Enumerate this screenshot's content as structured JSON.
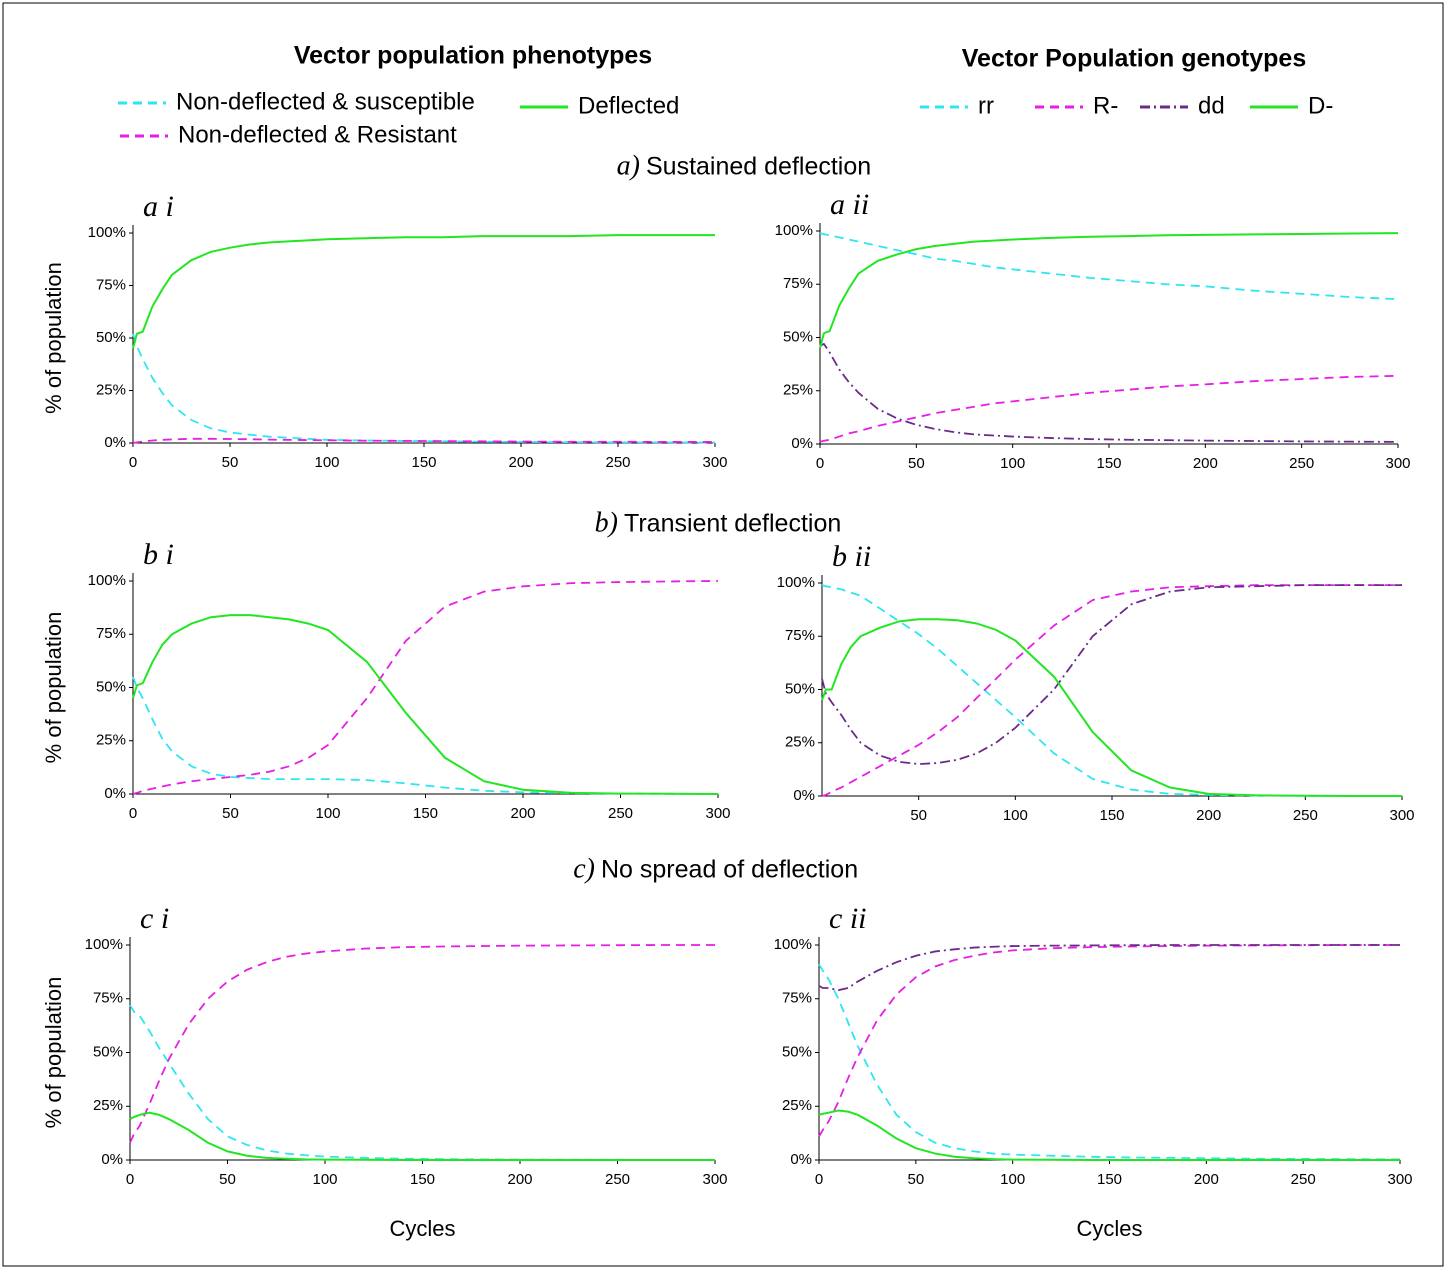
{
  "legends": [
    {
      "title": "Vector population  phenotypes",
      "items": [
        {
          "name": "Non-deflected & susceptible",
          "color": "#2ee6f0",
          "style": "dashed"
        },
        {
          "name": "Deflected",
          "color": "#22e622",
          "style": "solid"
        },
        {
          "name": "Non-deflected & Resistant",
          "color": "#e61ee6",
          "style": "dashed"
        }
      ]
    },
    {
      "title": "Vector Population  genotypes",
      "items": [
        {
          "name": "rr",
          "color": "#2ee6f0",
          "style": "dashed"
        },
        {
          "name": "R-",
          "color": "#e61ee6",
          "style": "dashed"
        },
        {
          "name": "dd",
          "color": "#6a2b8a",
          "style": "dashdot"
        },
        {
          "name": "D-",
          "color": "#22e622",
          "style": "solid"
        }
      ]
    }
  ],
  "sections": [
    {
      "letter": "a)",
      "title": "Sustained deflection"
    },
    {
      "letter": "b)",
      "title": "Transient deflection"
    },
    {
      "letter": "c)",
      "title": "No spread of deflection"
    }
  ],
  "chart_data": [
    {
      "type": "line",
      "title": "a i",
      "ylabel": "% of population",
      "x": [
        0,
        2,
        5,
        10,
        15,
        20,
        30,
        40,
        50,
        60,
        70,
        80,
        90,
        100,
        120,
        140,
        160,
        180,
        200,
        225,
        250,
        275,
        300
      ],
      "series": [
        {
          "color": "#2ee6f0",
          "style": "dashed",
          "values": [
            52,
            46,
            40,
            31,
            24,
            18,
            11,
            7,
            5,
            4,
            3,
            2.5,
            2,
            1.5,
            1.2,
            1,
            0.8,
            0.6,
            0.5,
            0.4,
            0.3,
            0.3,
            0.2
          ]
        },
        {
          "color": "#e61ee6",
          "style": "dashed",
          "values": [
            0,
            0.3,
            0.7,
            1.2,
            1.5,
            1.7,
            2,
            2,
            1.9,
            1.8,
            1.6,
            1.5,
            1.4,
            1.3,
            1.1,
            1,
            0.9,
            0.8,
            0.7,
            0.6,
            0.6,
            0.5,
            0.5
          ]
        },
        {
          "color": "#22e622",
          "style": "solid",
          "values": [
            45,
            52,
            53,
            65,
            73,
            80,
            87,
            91,
            93,
            94.5,
            95.5,
            96,
            96.5,
            97,
            97.5,
            98,
            98,
            98.5,
            98.5,
            98.5,
            99,
            99,
            99
          ]
        }
      ],
      "xlim": [
        0,
        300
      ],
      "ylim": [
        0,
        100
      ],
      "xticks": [
        0,
        50,
        100,
        150,
        200,
        250,
        300
      ],
      "yticks": [
        {
          "value": 0,
          "label": "0%"
        },
        {
          "value": 25,
          "label": "25%"
        },
        {
          "value": 50,
          "label": "50%"
        },
        {
          "value": 75,
          "label": "75%"
        },
        {
          "value": 100,
          "label": "100%"
        }
      ]
    },
    {
      "type": "line",
      "title": "a ii",
      "x": [
        0,
        2,
        5,
        10,
        15,
        20,
        30,
        40,
        50,
        60,
        70,
        80,
        90,
        100,
        120,
        140,
        160,
        180,
        200,
        225,
        250,
        275,
        300
      ],
      "series": [
        {
          "color": "#2ee6f0",
          "style": "dashed",
          "values": [
            99,
            98.5,
            98,
            97,
            96,
            95,
            93,
            91,
            89,
            87,
            86,
            84.5,
            83,
            82,
            80,
            78,
            76.5,
            75,
            74,
            72,
            70.5,
            69,
            68
          ]
        },
        {
          "color": "#e61ee6",
          "style": "dashed",
          "values": [
            1,
            1.5,
            2,
            3.5,
            5,
            6,
            8.5,
            10.5,
            12.5,
            14.5,
            16,
            17.5,
            19,
            20,
            22,
            24,
            25.5,
            27,
            28,
            29.5,
            30.5,
            31.5,
            32
          ]
        },
        {
          "color": "#6a2b8a",
          "style": "dashdot",
          "values": [
            46,
            47,
            43,
            35,
            29,
            24,
            16.5,
            12,
            9,
            7,
            5.5,
            4.5,
            4,
            3.5,
            2.8,
            2.3,
            2,
            1.8,
            1.6,
            1.4,
            1.2,
            1.1,
            1
          ]
        },
        {
          "color": "#22e622",
          "style": "solid",
          "values": [
            45,
            52,
            53,
            65,
            73,
            80,
            86,
            89,
            91.5,
            93,
            94,
            95,
            95.5,
            96,
            96.8,
            97.3,
            97.6,
            98,
            98.2,
            98.4,
            98.6,
            98.8,
            99
          ]
        }
      ],
      "xlim": [
        0,
        300
      ],
      "ylim": [
        0,
        100
      ],
      "xticks": [
        0,
        50,
        100,
        150,
        200,
        250,
        300
      ],
      "yticks": [
        {
          "value": 0,
          "label": "0%"
        },
        {
          "value": 25,
          "label": "25%"
        },
        {
          "value": 50,
          "label": "50%"
        },
        {
          "value": 75,
          "label": "75%"
        },
        {
          "value": 100,
          "label": "100%"
        }
      ]
    },
    {
      "type": "line",
      "title": "b i",
      "ylabel": "% of population",
      "x": [
        0,
        2,
        5,
        10,
        15,
        20,
        30,
        40,
        50,
        60,
        70,
        80,
        90,
        100,
        120,
        140,
        160,
        180,
        200,
        225,
        250,
        275,
        300
      ],
      "series": [
        {
          "color": "#2ee6f0",
          "style": "dashed",
          "values": [
            55,
            50,
            45,
            35,
            26,
            20,
            13,
            9.5,
            8,
            7.5,
            7,
            7,
            7,
            7,
            6.5,
            5,
            3,
            1.5,
            0.8,
            0.4,
            0.2,
            0.1,
            0
          ]
        },
        {
          "color": "#e61ee6",
          "style": "dashed",
          "values": [
            0,
            0.5,
            1.5,
            2.5,
            3.5,
            4.5,
            6,
            7,
            8,
            9,
            10.5,
            13,
            17,
            23,
            45,
            72,
            88,
            95,
            97.5,
            99,
            99.5,
            99.8,
            100
          ]
        },
        {
          "color": "#22e622",
          "style": "solid",
          "values": [
            45,
            51,
            52,
            62,
            70,
            75,
            80,
            83,
            84,
            84,
            83,
            82,
            80,
            77,
            62,
            38,
            17,
            6,
            2,
            0.5,
            0.2,
            0.1,
            0
          ]
        }
      ],
      "xlim": [
        0,
        300
      ],
      "ylim": [
        0,
        100
      ],
      "xticks": [
        0,
        50,
        100,
        150,
        200,
        250,
        300
      ],
      "yticks": [
        {
          "value": 0,
          "label": "0%"
        },
        {
          "value": 25,
          "label": "25%"
        },
        {
          "value": 50,
          "label": "50%"
        },
        {
          "value": 75,
          "label": "75%"
        },
        {
          "value": 100,
          "label": "100%"
        }
      ]
    },
    {
      "type": "line",
      "title": "b ii",
      "x": [
        0,
        2,
        5,
        10,
        15,
        20,
        30,
        40,
        50,
        60,
        70,
        80,
        90,
        100,
        120,
        140,
        160,
        180,
        200,
        225,
        250,
        275,
        300
      ],
      "series": [
        {
          "color": "#2ee6f0",
          "style": "dashed",
          "values": [
            99,
            98.5,
            98,
            97,
            95.5,
            94,
            88,
            82,
            76,
            69,
            61,
            53,
            45,
            37,
            20,
            8,
            3,
            1,
            0.5,
            0.2,
            0.1,
            0,
            0
          ]
        },
        {
          "color": "#e61ee6",
          "style": "dashed",
          "values": [
            0,
            0.5,
            2,
            4,
            6.5,
            9,
            14,
            19,
            24,
            30,
            37,
            46,
            55,
            64,
            80,
            92,
            96,
            98,
            98.5,
            99,
            99,
            99,
            99
          ]
        },
        {
          "color": "#6a2b8a",
          "style": "dashdot",
          "values": [
            55,
            48,
            44,
            38,
            31,
            25,
            19,
            16,
            15,
            15.5,
            17,
            20,
            25,
            32,
            50,
            75,
            90,
            96,
            98,
            98.5,
            99,
            99,
            99
          ]
        },
        {
          "color": "#22e622",
          "style": "solid",
          "values": [
            45,
            50,
            50,
            62,
            70,
            75,
            79,
            82,
            83,
            83,
            82.5,
            81,
            78,
            73,
            56,
            30,
            12,
            4,
            1,
            0.3,
            0.1,
            0,
            0
          ]
        }
      ],
      "xlim": [
        0,
        300
      ],
      "ylim": [
        0,
        100
      ],
      "xticks": [
        50,
        100,
        150,
        200,
        250,
        300
      ],
      "yticks": [
        {
          "value": 0,
          "label": "0%"
        },
        {
          "value": 25,
          "label": "25%"
        },
        {
          "value": 50,
          "label": "50%"
        },
        {
          "value": 75,
          "label": "75%"
        },
        {
          "value": 100,
          "label": "100%"
        }
      ]
    },
    {
      "type": "line",
      "title": "c i",
      "ylabel": "% of population",
      "xlabel": "Cycles",
      "x": [
        0,
        2,
        5,
        10,
        15,
        20,
        30,
        40,
        50,
        60,
        70,
        80,
        90,
        100,
        120,
        140,
        160,
        180,
        200,
        225,
        250,
        275,
        300
      ],
      "series": [
        {
          "color": "#2ee6f0",
          "style": "dashed",
          "values": [
            72,
            69,
            67,
            60,
            52,
            45,
            31,
            19,
            11,
            7,
            4.5,
            3,
            2.2,
            1.6,
            1,
            0.6,
            0.4,
            0.3,
            0.2,
            0.1,
            0.1,
            0,
            0
          ]
        },
        {
          "color": "#e61ee6",
          "style": "dashed",
          "values": [
            8,
            12,
            16,
            26,
            37,
            47,
            63,
            75,
            83,
            88.5,
            92,
            94.5,
            96,
            97,
            98.3,
            99,
            99.3,
            99.5,
            99.7,
            99.8,
            99.9,
            100,
            100
          ]
        },
        {
          "color": "#22e622",
          "style": "solid",
          "values": [
            19,
            20,
            21,
            22,
            21,
            19,
            14,
            8,
            4,
            2,
            1,
            0.6,
            0.3,
            0.2,
            0.1,
            0,
            0,
            0,
            0,
            0,
            0,
            0,
            0
          ]
        }
      ],
      "xlim": [
        0,
        300
      ],
      "ylim": [
        0,
        100
      ],
      "xticks": [
        0,
        50,
        100,
        150,
        200,
        250,
        300
      ],
      "yticks": [
        {
          "value": 0,
          "label": "0%"
        },
        {
          "value": 25,
          "label": "25%"
        },
        {
          "value": 50,
          "label": "50%"
        },
        {
          "value": 75,
          "label": "75%"
        },
        {
          "value": 100,
          "label": "100%"
        }
      ]
    },
    {
      "type": "line",
      "title": "c ii",
      "xlabel": "Cycles",
      "x": [
        0,
        2,
        5,
        10,
        15,
        20,
        30,
        40,
        50,
        60,
        70,
        80,
        90,
        100,
        120,
        140,
        160,
        180,
        200,
        225,
        250,
        275,
        300
      ],
      "series": [
        {
          "color": "#2ee6f0",
          "style": "dashed",
          "values": [
            91,
            88,
            84,
            75,
            64,
            53,
            35,
            21,
            13,
            8,
            5.5,
            4,
            3,
            2.5,
            2,
            1.5,
            1.2,
            1,
            0.8,
            0.6,
            0.5,
            0.4,
            0.3
          ]
        },
        {
          "color": "#e61ee6",
          "style": "dashed",
          "values": [
            11,
            14,
            18,
            27,
            38,
            48,
            65,
            77,
            85,
            90,
            93,
            95,
            96.5,
            97.5,
            98.5,
            99,
            99.3,
            99.5,
            99.7,
            99.8,
            99.9,
            100,
            100
          ]
        },
        {
          "color": "#6a2b8a",
          "style": "dashdot",
          "values": [
            81,
            80,
            80,
            79,
            80,
            83,
            88,
            92,
            95,
            97,
            98,
            98.8,
            99.2,
            99.5,
            99.7,
            99.8,
            99.9,
            100,
            100,
            100,
            100,
            100,
            100
          ]
        },
        {
          "color": "#22e622",
          "style": "solid",
          "values": [
            21,
            21.5,
            22,
            23,
            22.5,
            21,
            16,
            10,
            5.5,
            3,
            1.5,
            0.8,
            0.4,
            0.2,
            0.1,
            0,
            0,
            0,
            0,
            0,
            0,
            0,
            0
          ]
        }
      ],
      "xlim": [
        0,
        300
      ],
      "ylim": [
        0,
        100
      ],
      "xticks": [
        0,
        50,
        100,
        150,
        200,
        250,
        300
      ],
      "yticks": [
        {
          "value": 0,
          "label": "0%"
        },
        {
          "value": 25,
          "label": "25%"
        },
        {
          "value": 50,
          "label": "50%"
        },
        {
          "value": 75,
          "label": "75%"
        },
        {
          "value": 100,
          "label": "100%"
        }
      ]
    }
  ]
}
